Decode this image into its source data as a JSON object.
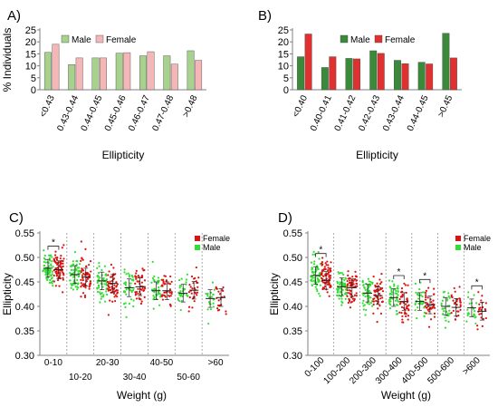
{
  "chart_data": [
    {
      "panel": "A)",
      "type": "bar",
      "ylabel": "% Individuals",
      "xlabel": "Ellipticity",
      "ylim": [
        0,
        25
      ],
      "yticks": [
        0,
        5,
        10,
        15,
        20,
        25
      ],
      "legend": "top-left",
      "categories": [
        "<0.43",
        "0.43-0.44",
        "0.44-0.45",
        "0.45-0.46",
        "0.46-0.47",
        "0.47-0.48",
        ">0.48"
      ],
      "series": [
        {
          "name": "Male",
          "color": "#a9d18e",
          "values": [
            15.6,
            10.5,
            13.3,
            15.3,
            14.2,
            14.2,
            16.3
          ]
        },
        {
          "name": "Female",
          "color": "#f4b6b6",
          "values": [
            19.0,
            13.3,
            13.3,
            15.5,
            15.9,
            10.7,
            12.3
          ]
        }
      ]
    },
    {
      "panel": "B)",
      "type": "bar",
      "ylabel": "",
      "xlabel": "Ellipticity",
      "ylim": [
        0,
        25
      ],
      "yticks": [
        0,
        5,
        10,
        15,
        20,
        25
      ],
      "legend": "top-left",
      "categories": [
        "<0.40",
        "0.40-0.41",
        "0.41-0.42",
        "0.42-0.43",
        "0.43-0.44",
        "0.44-0.45",
        ">0.45"
      ],
      "series": [
        {
          "name": "Male",
          "color": "#3a8a3a",
          "values": [
            13.8,
            9.3,
            13.1,
            16.3,
            12.3,
            11.5,
            23.6
          ]
        },
        {
          "name": "Female",
          "color": "#e03030",
          "values": [
            23.3,
            13.8,
            12.9,
            15.2,
            10.9,
            10.8,
            13.3
          ]
        }
      ]
    },
    {
      "panel": "C)",
      "type": "scatter",
      "ylabel": "Ellipticity",
      "xlabel": "Weight (g)",
      "ylim": [
        0.3,
        0.55
      ],
      "yticks": [
        "0.30",
        "0.35",
        "0.40",
        "0.45",
        "0.50",
        "0.55"
      ],
      "legend": "top-right",
      "series_names": [
        "Female",
        "Male"
      ],
      "categories": [
        "0-10",
        "10-20",
        "20-30",
        "30-40",
        "40-50",
        "50-60",
        ">60"
      ],
      "groups": [
        {
          "male": 0.478,
          "female": 0.475,
          "sig": true
        },
        {
          "male": 0.465,
          "female": 0.46,
          "sig": false
        },
        {
          "male": 0.452,
          "female": 0.447,
          "sig": false
        },
        {
          "male": 0.438,
          "female": 0.44,
          "sig": false
        },
        {
          "male": 0.432,
          "female": 0.432,
          "sig": false
        },
        {
          "male": 0.427,
          "female": 0.433,
          "sig": false
        },
        {
          "male": 0.416,
          "female": 0.418,
          "sig": false
        }
      ],
      "sig_label": "*"
    },
    {
      "panel": "D)",
      "type": "scatter",
      "ylabel": "Ellipticity",
      "xlabel": "Weight (g)",
      "ylim": [
        0.3,
        0.55
      ],
      "yticks": [
        "0.30",
        "0.35",
        "0.40",
        "0.45",
        "0.50",
        "0.55"
      ],
      "legend": "top-right",
      "series_names": [
        "Female",
        "Male"
      ],
      "categories": [
        "0-100",
        "100-200",
        "200-300",
        "300-400",
        "400-500",
        "500-600",
        ">600"
      ],
      "groups": [
        {
          "male": 0.463,
          "female": 0.453,
          "sig": true
        },
        {
          "male": 0.44,
          "female": 0.438,
          "sig": false
        },
        {
          "male": 0.427,
          "female": 0.422,
          "sig": false
        },
        {
          "male": 0.418,
          "female": 0.41,
          "sig": true
        },
        {
          "male": 0.41,
          "female": 0.403,
          "sig": true
        },
        {
          "male": 0.4,
          "female": 0.398,
          "sig": false
        },
        {
          "male": 0.397,
          "female": 0.39,
          "sig": true
        }
      ],
      "sig_label": "*"
    }
  ],
  "colors": {
    "male_points": "#33dd33",
    "female_points": "#dd1111",
    "axis": "#808080",
    "bar_edge": "#444444"
  }
}
